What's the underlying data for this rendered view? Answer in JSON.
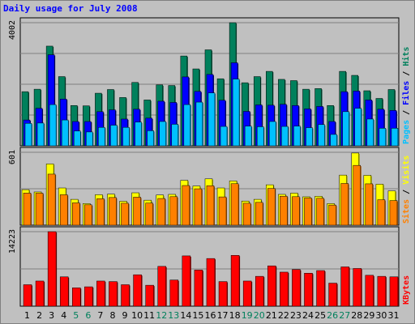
{
  "title": "Daily usage for July 2008",
  "colors": {
    "hits": "#00805c",
    "files": "#0000ff",
    "pages": "#00c0ff",
    "visits": "#ffff00",
    "sites": "#ff8000",
    "kbytes": "#ff0000",
    "weekend_label": "#00805c",
    "weekday_label": "#000000"
  },
  "weekend_days": [
    5,
    6,
    12,
    13,
    19,
    20,
    26,
    27
  ],
  "chart_data": [
    {
      "type": "bar",
      "categories": [
        "1",
        "2",
        "3",
        "4",
        "5",
        "6",
        "7",
        "8",
        "9",
        "10",
        "11",
        "12",
        "13",
        "14",
        "15",
        "16",
        "17",
        "18",
        "19",
        "20",
        "21",
        "22",
        "23",
        "24",
        "25",
        "26",
        "27",
        "28",
        "29",
        "30",
        "31"
      ],
      "ylim": [
        0,
        4002
      ],
      "y_tick_label": "4002",
      "right_labels": [
        "Pages",
        "Files",
        "Hits"
      ],
      "series": [
        {
          "name": "Hits",
          "values": [
            1760,
            1840,
            3240,
            2250,
            1310,
            1300,
            1710,
            1830,
            1570,
            2060,
            1490,
            1980,
            1960,
            2920,
            2500,
            3120,
            2180,
            4002,
            2050,
            2250,
            2420,
            2160,
            2120,
            1840,
            1860,
            1310,
            2420,
            2290,
            1790,
            1540,
            1830
          ]
        },
        {
          "name": "Files",
          "values": [
            840,
            1220,
            2960,
            1520,
            790,
            790,
            1110,
            1170,
            870,
            1190,
            900,
            1450,
            1410,
            2240,
            1770,
            2320,
            1480,
            2700,
            1120,
            1330,
            1320,
            1350,
            1310,
            1200,
            1280,
            790,
            1760,
            1780,
            1490,
            1190,
            1150
          ]
        },
        {
          "name": "Pages",
          "values": [
            730,
            740,
            1340,
            840,
            480,
            450,
            600,
            670,
            600,
            770,
            490,
            790,
            700,
            1340,
            1420,
            1720,
            630,
            2170,
            640,
            620,
            790,
            630,
            640,
            590,
            690,
            370,
            1110,
            1220,
            870,
            570,
            570
          ]
        }
      ]
    },
    {
      "type": "bar",
      "categories": [
        "1",
        "2",
        "3",
        "4",
        "5",
        "6",
        "7",
        "8",
        "9",
        "10",
        "11",
        "12",
        "13",
        "14",
        "15",
        "16",
        "17",
        "18",
        "19",
        "20",
        "21",
        "22",
        "23",
        "24",
        "25",
        "26",
        "27",
        "28",
        "29",
        "30",
        "31"
      ],
      "ylim": [
        0,
        601
      ],
      "y_tick_label": "601",
      "right_labels": [
        "Sites",
        "Visits"
      ],
      "series": [
        {
          "name": "Visits",
          "values": [
            293,
            274,
            505,
            307,
            213,
            178,
            251,
            256,
            197,
            267,
            206,
            249,
            254,
            370,
            323,
            382,
            307,
            365,
            199,
            213,
            333,
            254,
            264,
            234,
            238,
            178,
            413,
            595,
            411,
            338,
            283
          ]
        },
        {
          "name": "Sites",
          "values": [
            265,
            264,
            421,
            251,
            184,
            168,
            218,
            228,
            181,
            231,
            182,
            220,
            235,
            327,
            300,
            325,
            233,
            342,
            181,
            188,
            303,
            239,
            235,
            224,
            222,
            166,
            344,
            493,
            341,
            210,
            203
          ]
        }
      ]
    },
    {
      "type": "bar",
      "categories": [
        "1",
        "2",
        "3",
        "4",
        "5",
        "6",
        "7",
        "8",
        "9",
        "10",
        "11",
        "12",
        "13",
        "14",
        "15",
        "16",
        "17",
        "18",
        "19",
        "20",
        "21",
        "22",
        "23",
        "24",
        "25",
        "26",
        "27",
        "28",
        "29",
        "30",
        "31"
      ],
      "ylim": [
        0,
        14223
      ],
      "y_tick_label": "14223",
      "right_labels": [
        "KBytes"
      ],
      "series": [
        {
          "name": "KBytes",
          "values": [
            4100,
            4800,
            14223,
            5600,
            3500,
            3700,
            4800,
            4700,
            4100,
            6000,
            4000,
            7600,
            5000,
            9600,
            6900,
            9100,
            4700,
            9700,
            4800,
            5700,
            7700,
            6500,
            7000,
            6300,
            6800,
            4400,
            7500,
            7200,
            5900,
            5700,
            5600
          ]
        }
      ]
    }
  ]
}
